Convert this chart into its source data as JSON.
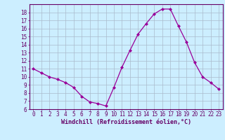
{
  "x": [
    0,
    1,
    2,
    3,
    4,
    5,
    6,
    7,
    8,
    9,
    10,
    11,
    12,
    13,
    14,
    15,
    16,
    17,
    18,
    19,
    20,
    21,
    22,
    23
  ],
  "y": [
    11,
    10.5,
    10,
    9.7,
    9.3,
    8.7,
    7.6,
    6.9,
    6.7,
    6.4,
    8.7,
    11.2,
    13.3,
    15.3,
    16.6,
    17.8,
    18.4,
    18.4,
    16.3,
    14.3,
    11.8,
    10,
    9.3,
    8.5
  ],
  "line_color": "#990099",
  "bg_color": "#cceeff",
  "grid_color": "#aabbcc",
  "xlabel": "Windchill (Refroidissement éolien,°C)",
  "ylim": [
    6,
    19
  ],
  "xlim_min": -0.5,
  "xlim_max": 23.5,
  "yticks": [
    6,
    7,
    8,
    9,
    10,
    11,
    12,
    13,
    14,
    15,
    16,
    17,
    18
  ],
  "xticks": [
    0,
    1,
    2,
    3,
    4,
    5,
    6,
    7,
    8,
    9,
    10,
    11,
    12,
    13,
    14,
    15,
    16,
    17,
    18,
    19,
    20,
    21,
    22,
    23
  ],
  "marker": "D",
  "markersize": 2.0,
  "linewidth": 0.9,
  "xlabel_fontsize": 6.0,
  "tick_fontsize": 5.5,
  "label_color": "#660066"
}
